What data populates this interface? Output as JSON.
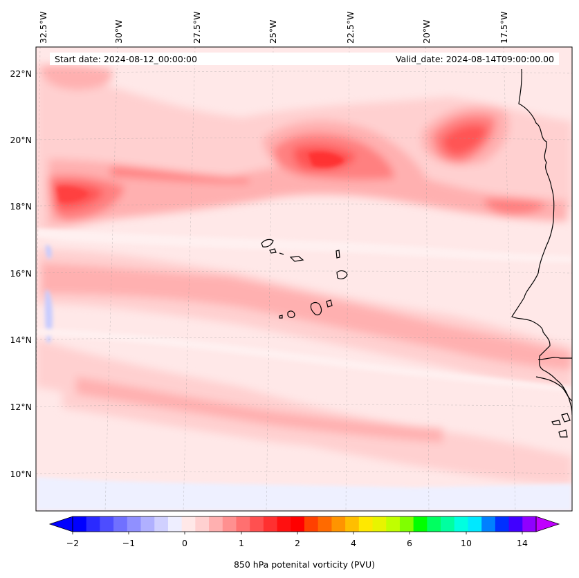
{
  "map": {
    "start_date_text": "Start date: 2024-08-12_00:00:00",
    "valid_date_text": "Valid_date: 2024-08-14T09:00:00.00",
    "lon_labels": [
      "32.5°W",
      "30°W",
      "27.5°W",
      "25°W",
      "22.5°W",
      "20°W",
      "17.5°W"
    ],
    "lat_labels": [
      "22°N",
      "20°N",
      "18°N",
      "16°N",
      "14°N",
      "12°N",
      "10°N"
    ],
    "extent": {
      "lon_min": -33.0,
      "lon_max": -15.5,
      "lat_min": 8.9,
      "lat_max": 22.8
    },
    "colors": {
      "background": "#ffe8e8",
      "light_pink": "#ffd0d0",
      "pink": "#ffb0b0",
      "mid_red": "#ff8080",
      "red": "#ff5555",
      "strong_red": "#ff3030",
      "light_blue": "#eef0ff",
      "blue": "#c8ccff",
      "coast": "#000000"
    }
  },
  "colorbar": {
    "label": "850 hPa potenital vorticity (PVU)",
    "tick_labels": [
      "−2",
      "−1",
      "0",
      "1",
      "2",
      "4",
      "6",
      "10",
      "14"
    ],
    "colors": [
      "#0000ff",
      "#2a2aff",
      "#4d4dff",
      "#7070ff",
      "#9090ff",
      "#b0b0ff",
      "#d0d0ff",
      "#eeeeff",
      "#ffe8e8",
      "#ffd0d0",
      "#ffb0b0",
      "#ff9090",
      "#ff7070",
      "#ff5050",
      "#ff3030",
      "#ff1010",
      "#ff0000",
      "#ff4000",
      "#ff6a00",
      "#ff9400",
      "#ffbe00",
      "#ffe800",
      "#e8f400",
      "#c0ff00",
      "#80ff00",
      "#00ff00",
      "#00ff60",
      "#00ffa0",
      "#00ffe0",
      "#00e8ff",
      "#0080ff",
      "#0030ff",
      "#4000ff",
      "#9000ff"
    ],
    "extend_min_color": "#0000ff",
    "extend_max_color": "#c000ff"
  }
}
